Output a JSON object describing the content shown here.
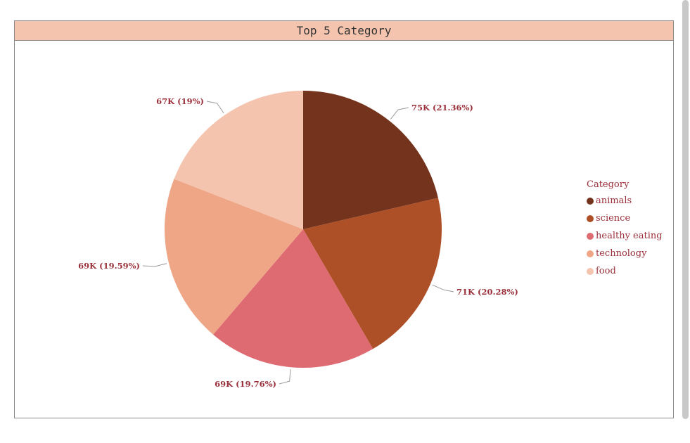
{
  "panel": {
    "title": "Top 5 Category"
  },
  "chart_data": {
    "type": "pie",
    "categories": [
      "animals",
      "science",
      "healthy eating",
      "technology",
      "food"
    ],
    "values": [
      75,
      71,
      69,
      69,
      67
    ],
    "percentages": [
      21.36,
      20.28,
      19.76,
      19.59,
      19.0
    ],
    "data_labels": [
      "75K (21.36%)",
      "71K (20.28%)",
      "69K (19.76%)",
      "69K (19.59%)",
      "67K (19%)"
    ],
    "colors": [
      "#74331c",
      "#ad4f27",
      "#de6a72",
      "#efa687",
      "#f4c4ae"
    ],
    "legend_title": "Category",
    "legend_position": "right"
  }
}
